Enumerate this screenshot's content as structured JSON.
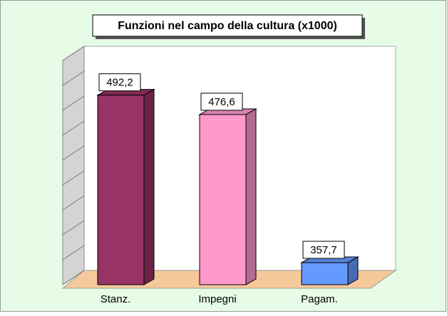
{
  "chart_data": {
    "type": "bar3d",
    "title": "Funzioni nel campo della cultura (x1000)",
    "categories": [
      "Stanz.",
      "Impegni",
      "Pagam."
    ],
    "values": [
      492.2,
      476.6,
      357.7
    ],
    "value_labels": [
      "492,2",
      "476,6",
      "357,7"
    ],
    "colors": [
      "#993366",
      "#ff99cc",
      "#6699ff"
    ],
    "ylim": [
      340,
      520
    ],
    "yticks": [
      340,
      360,
      380,
      400,
      420,
      440,
      460,
      480,
      500,
      520
    ],
    "grid": true
  }
}
